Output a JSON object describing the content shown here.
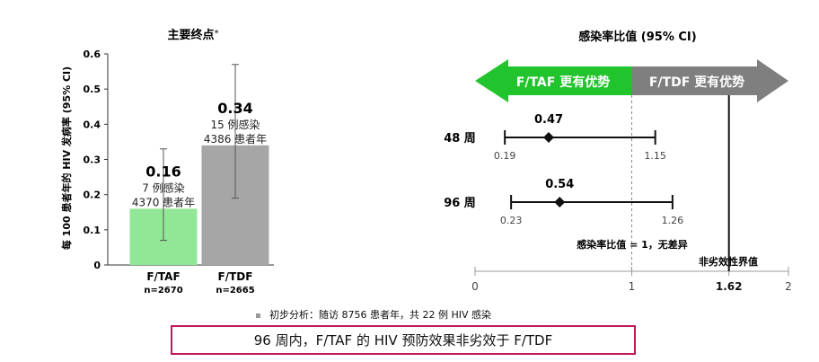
{
  "chart_data": [
    {
      "type": "bar",
      "title": "主要终点",
      "title_suffix": "*",
      "ylabel": "每 100 患者年的 HIV 发病率 (95% CI)",
      "ylim": [
        0,
        0.6
      ],
      "yticks": [
        "0",
        "0.1",
        "0.2",
        "0.3",
        "0.4",
        "0.5",
        "0.6"
      ],
      "categories": [
        "F/TAF",
        "F/TDF"
      ],
      "n_labels": [
        "n=2670",
        "n=2665"
      ],
      "values": [
        0.16,
        0.34
      ],
      "value_labels": [
        "0.16",
        "0.34"
      ],
      "ci_low": [
        0.07,
        0.19
      ],
      "ci_high": [
        0.33,
        0.57
      ],
      "infections": [
        "7 例感染",
        "15 例感染"
      ],
      "person_years": [
        "4370 患者年",
        "4386 患者年"
      ],
      "colors": [
        "#92e796",
        "#a6a6a6"
      ]
    },
    {
      "type": "forest",
      "title": "感染率比值 (95% CI)",
      "xlim": [
        0,
        2
      ],
      "xticks": [
        "0",
        "1",
        "1.62",
        "2"
      ],
      "xtick_values": [
        0,
        1,
        1.62,
        2
      ],
      "arrow_left_label": "F/TAF 更有优势",
      "arrow_right_label": "F/TDF 更有优势",
      "arrow_left_color": "#22c42d",
      "arrow_right_color": "#7f7f7f",
      "rows": [
        {
          "label": "48 周",
          "estimate": 0.47,
          "estimate_label": "0.47",
          "low": 0.19,
          "low_label": "0.19",
          "high": 1.15,
          "high_label": "1.15"
        },
        {
          "label": "96 周",
          "estimate": 0.54,
          "estimate_label": "0.54",
          "low": 0.23,
          "low_label": "0.23",
          "high": 1.26,
          "high_label": "1.26"
        }
      ],
      "null_line_label": "感染率比值 = 1，无差异",
      "margin_label": "非劣效性界值",
      "margin_value": 1.62
    }
  ],
  "footnote": "初步分析：随访 8756 患者年，共 22 例 HIV 感染",
  "conclusion": "96 周内，F/TAF 的 HIV 预防效果非劣效于 F/TDF"
}
